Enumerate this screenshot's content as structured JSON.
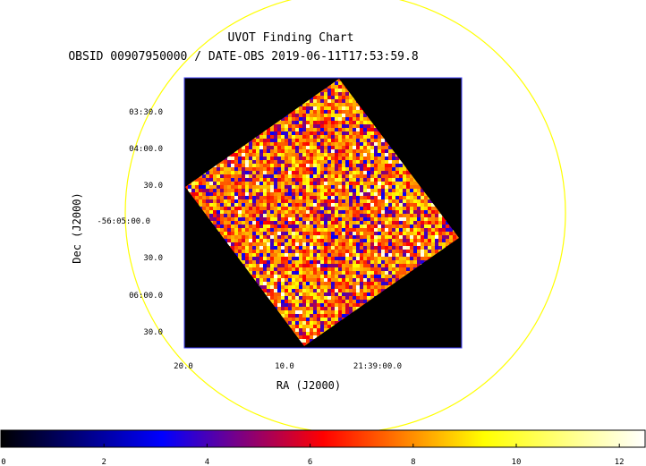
{
  "chart_data": {
    "type": "heatmap",
    "title": "UVOT Finding Chart",
    "subtitle": "OBSID 00907950000 / DATE-OBS 2019-06-11T17:53:59.8",
    "xlabel": "RA (J2000)",
    "ylabel": "Dec (J2000)",
    "x_ticks": [
      "20.0",
      "10.0",
      "21:39:00.0"
    ],
    "y_ticks": [
      "03:30.0",
      "04:00.0",
      "30.0",
      "-56:05:00.0",
      "30.0",
      "06:00.0",
      "30.0"
    ],
    "colorbar": {
      "ticks": [
        0,
        2,
        4,
        6,
        8,
        10,
        12
      ],
      "range": [
        0,
        12.5
      ],
      "colormap": [
        "#000000",
        "#0000ff",
        "#ff0000",
        "#ffff00",
        "#ffffff"
      ]
    },
    "frame_color": "#4444ff",
    "circle_color": "#ffff00",
    "background": "#000000",
    "grid": false
  }
}
